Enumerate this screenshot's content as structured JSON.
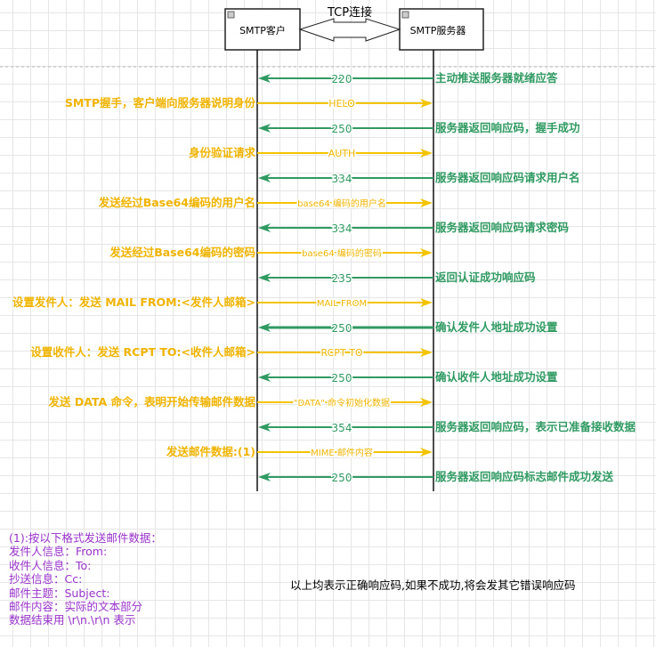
{
  "participants": {
    "client": "SMTP客户",
    "server": "SMTP服务器"
  },
  "connection_label": "TCP连接",
  "colors": {
    "server_msg": "#2f9a62",
    "client_msg": "#f5c400",
    "client_label": "#f0b400",
    "note": "#9933cc"
  },
  "messages": [
    {
      "dir": "s2c",
      "label": "220",
      "note": "主动推送服务器就绪应答"
    },
    {
      "dir": "c2s",
      "label": "HELO",
      "note": "SMTP握手，客户端向服务器说明身份"
    },
    {
      "dir": "s2c",
      "label": "250",
      "note": "服务器返回响应码，握手成功"
    },
    {
      "dir": "c2s",
      "label": "AUTH",
      "note": "身份验证请求"
    },
    {
      "dir": "s2c",
      "label": "334",
      "note": "服务器返回响应码请求用户名"
    },
    {
      "dir": "c2s",
      "label": "base64 编码的用户名",
      "note": "发送经过Base64编码的用户名"
    },
    {
      "dir": "s2c",
      "label": "334",
      "note": "服务器返回响应码请求密码"
    },
    {
      "dir": "c2s",
      "label": "base64 编码的密码",
      "note": "发送经过Base64编码的密码"
    },
    {
      "dir": "s2c",
      "label": "235",
      "note": "返回认证成功响应码"
    },
    {
      "dir": "c2s",
      "label": "MAIL FROM",
      "note": "设置发件人：发送 MAIL FROM:<发件人邮箱>"
    },
    {
      "dir": "s2c",
      "label": "250",
      "note": "确认发件人地址成功设置"
    },
    {
      "dir": "c2s",
      "label": "RCPT TO",
      "note": "设置收件人：发送 RCPT TO:<收件人邮箱>"
    },
    {
      "dir": "s2c",
      "label": "250",
      "note": "确认收件人地址成功设置"
    },
    {
      "dir": "c2s",
      "label": "\"DATA\" 命令初始化数据",
      "note": "发送 DATA 命令，表明开始传输邮件数据"
    },
    {
      "dir": "s2c",
      "label": "354",
      "note": "服务器返回响应码，表示已准备接收数据"
    },
    {
      "dir": "c2s",
      "label": "MIME 邮件内容",
      "note": "发送邮件数据:(1)"
    },
    {
      "dir": "s2c",
      "label": "250",
      "note": "服务器返回响应码标志邮件成功发送"
    }
  ],
  "footnote": [
    "(1):按以下格式发送邮件数据：",
    "发件人信息：From:",
    "收件人信息：To:",
    "抄送信息：Cc:",
    "邮件主题：Subject:",
    "邮件内容：实际的文本部分",
    "数据结束用 \\r\\n.\\r\\n 表示"
  ],
  "summary": "以上均表示正确响应码,如果不成功,将会发其它错误响应码"
}
